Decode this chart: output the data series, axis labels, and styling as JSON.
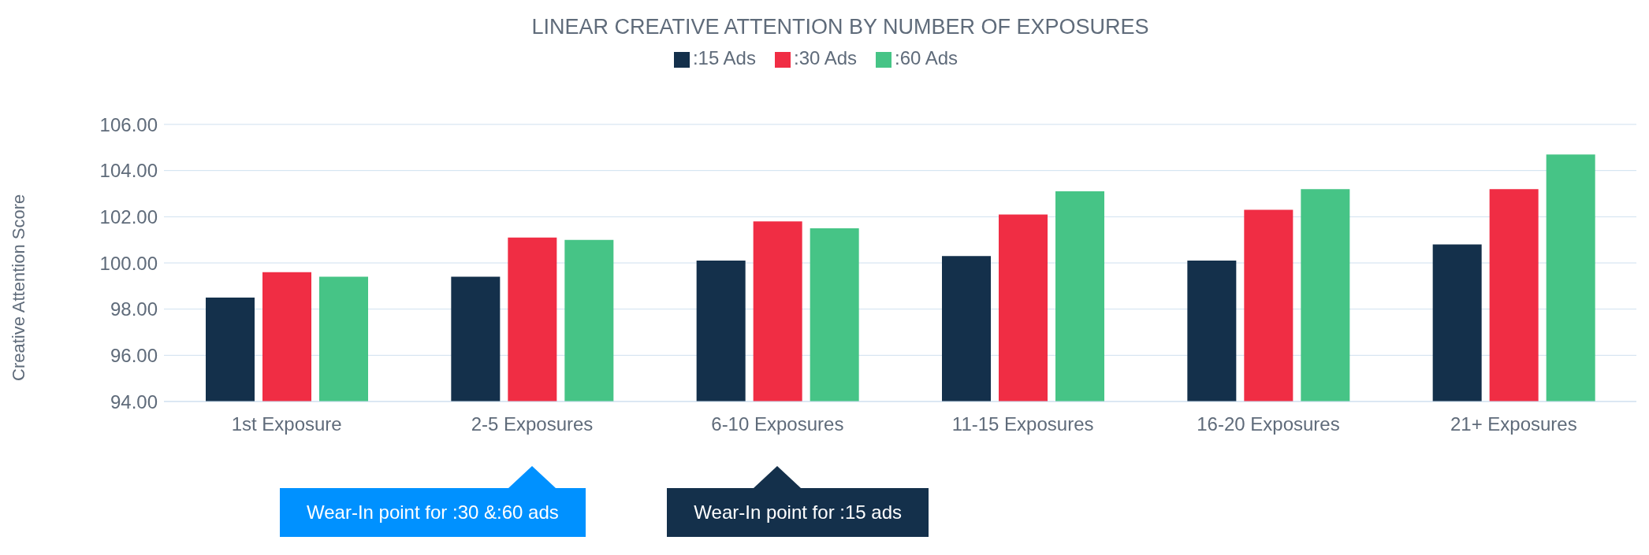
{
  "chart_data": {
    "type": "bar",
    "title": "LINEAR CREATIVE ATTENTION BY NUMBER OF EXPOSURES",
    "ylabel": "Creative Attention Score",
    "categories": [
      "1st Exposure",
      "2-5 Exposures",
      "6-10 Exposures",
      "11-15 Exposures",
      "16-20 Exposures",
      "21+ Exposures"
    ],
    "series": [
      {
        "name": ":15 Ads",
        "color": "#14304b",
        "values": [
          98.5,
          99.4,
          100.1,
          100.3,
          100.1,
          100.8
        ]
      },
      {
        "name": ":30 Ads",
        "color": "#f02d44",
        "values": [
          99.6,
          101.1,
          101.8,
          102.1,
          102.3,
          103.2
        ]
      },
      {
        "name": ":60 Ads",
        "color": "#46c486",
        "values": [
          99.4,
          101.0,
          101.5,
          103.1,
          103.2,
          104.7
        ]
      }
    ],
    "ylim": [
      94,
      106
    ],
    "yticks": [
      {
        "value": 94,
        "label": "94.00"
      },
      {
        "value": 96,
        "label": "96.00"
      },
      {
        "value": 98,
        "label": "98.00"
      },
      {
        "value": 100,
        "label": "100.00"
      },
      {
        "value": 102,
        "label": "102.00"
      },
      {
        "value": 104,
        "label": "104.00"
      },
      {
        "value": 106,
        "label": "106.00"
      }
    ],
    "grid": "y",
    "legend": "top",
    "annotations": [
      "Wear-In point for :30 &:60 ads",
      "Wear-In point for :15 ads"
    ]
  }
}
